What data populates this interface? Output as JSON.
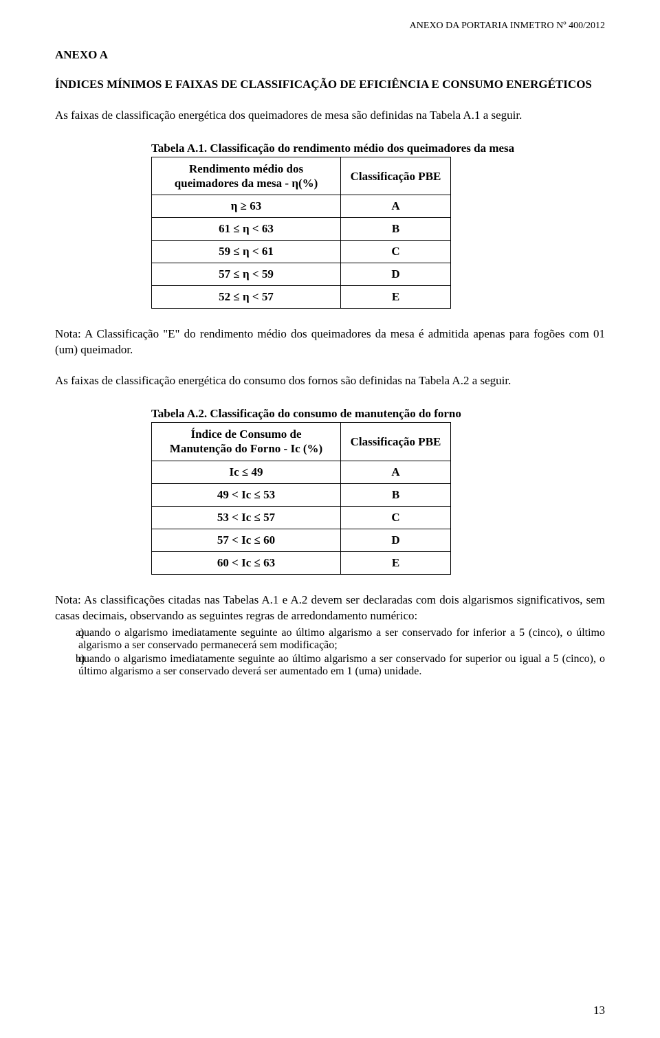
{
  "header": {
    "right": "ANEXO DA PORTARIA INMETRO Nº 400/2012"
  },
  "anexo_heading": "ANEXO A",
  "section_title": "ÍNDICES MÍNIMOS E FAIXAS DE CLASSIFICAÇÃO DE EFICIÊNCIA E CONSUMO ENERGÉTICOS",
  "intro1": "As faixas de classificação energética dos queimadores de mesa são definidas na Tabela A.1 a seguir.",
  "table1": {
    "caption": "Tabela A.1. Classificação do rendimento médio dos queimadores da mesa",
    "col1_header": "Rendimento médio dos queimadores da mesa - η(%)",
    "col2_header": "Classificação PBE",
    "rows": [
      {
        "range": "η   ≥   63",
        "cls": "A"
      },
      {
        "range": "61   ≤   η   <   63",
        "cls": "B"
      },
      {
        "range": "59   ≤   η   <   61",
        "cls": "C"
      },
      {
        "range": "57   ≤   η   <   59",
        "cls": "D"
      },
      {
        "range": "52   ≤   η   <   57",
        "cls": "E"
      }
    ]
  },
  "note1": "Nota: A Classificação \"E\" do rendimento médio dos queimadores da mesa é admitida apenas para fogões com 01 (um) queimador.",
  "intro2": "As faixas de classificação energética do consumo dos fornos são definidas na Tabela A.2 a seguir.",
  "table2": {
    "caption": "Tabela A.2. Classificação do consumo de manutenção do forno",
    "col1_header": "Índice de Consumo de Manutenção do Forno - Ic (%)",
    "col2_header": "Classificação PBE",
    "rows": [
      {
        "range": "Ic ≤ 49",
        "cls": "A"
      },
      {
        "range": "49 < Ic ≤ 53",
        "cls": "B"
      },
      {
        "range": "53 < Ic ≤ 57",
        "cls": "C"
      },
      {
        "range": "57 < Ic ≤ 60",
        "cls": "D"
      },
      {
        "range": "60 < Ic ≤ 63",
        "cls": "E"
      }
    ]
  },
  "note2_intro": "Nota: As classificações citadas nas Tabelas A.1 e A.2 devem ser declaradas com dois algarismos significativos, sem casas decimais, observando as seguintes regras de arredondamento numérico:",
  "note2_items": [
    {
      "marker": "a)",
      "text": "quando o algarismo imediatamente seguinte ao último algarismo a ser conservado for inferior a 5 (cinco), o último algarismo a ser conservado permanecerá sem modificação;"
    },
    {
      "marker": "b)",
      "text": "quando o algarismo imediatamente seguinte ao último algarismo a ser conservado for superior ou igual a 5 (cinco), o último algarismo a ser conservado deverá ser aumentado em 1 (uma) unidade."
    }
  ],
  "page_number": "13",
  "colors": {
    "text": "#000000",
    "background": "#ffffff",
    "border": "#000000"
  },
  "typography": {
    "body_fontsize_pt": 12,
    "font_family": "Times New Roman"
  }
}
